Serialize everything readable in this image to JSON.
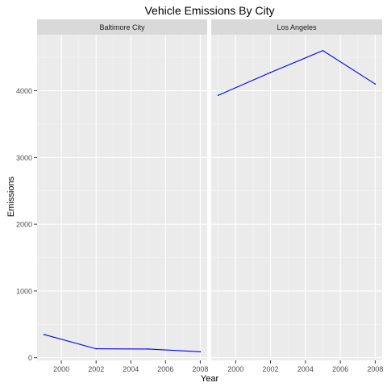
{
  "chart_data": {
    "type": "line",
    "title": "Vehicle Emissions By City",
    "xlabel": "Year",
    "ylabel": "Emissions",
    "xlim": [
      1998.6,
      2008.4
    ],
    "ylim": [
      -40,
      4840
    ],
    "x_ticks": [
      2000,
      2002,
      2004,
      2006,
      2008
    ],
    "y_ticks": [
      0,
      1000,
      2000,
      3000,
      4000
    ],
    "grid": true,
    "legend": "none",
    "line_color": "#0000ff",
    "panel_background": "#ebebeb",
    "strip_background": "#d9d9d9",
    "panels": [
      {
        "name": "Baltimore City",
        "x": [
          1999,
          2002,
          2005,
          2008
        ],
        "y": [
          347,
          134,
          130,
          89
        ]
      },
      {
        "name": "Los Angeles",
        "x": [
          1999,
          2002,
          2005,
          2008
        ],
        "y": [
          3931,
          4274,
          4601,
          4101
        ]
      }
    ]
  }
}
